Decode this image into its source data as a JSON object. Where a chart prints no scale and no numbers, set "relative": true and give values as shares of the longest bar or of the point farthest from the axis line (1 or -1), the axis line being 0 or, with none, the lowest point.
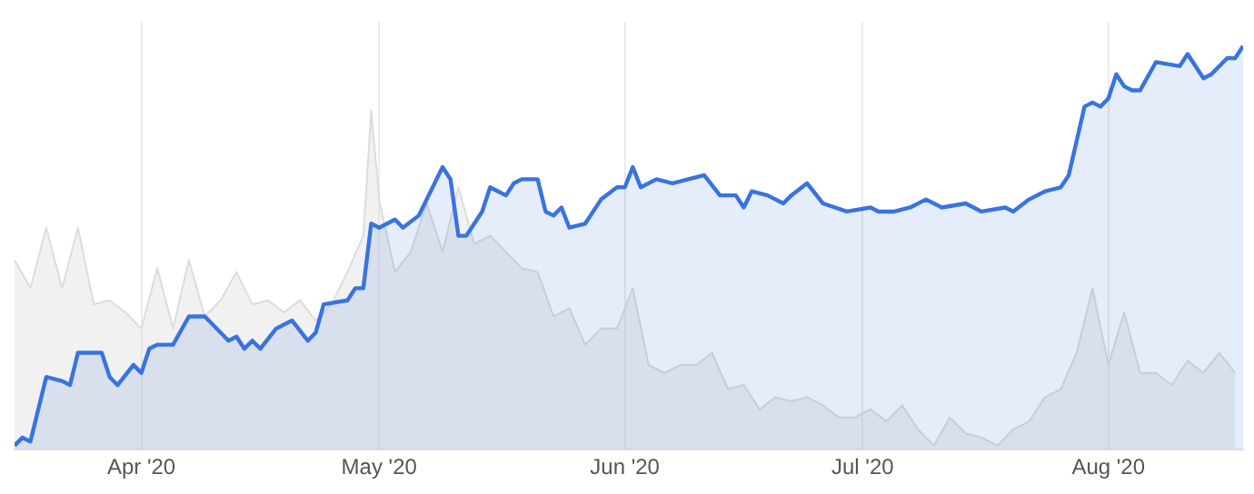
{
  "chart_data": {
    "type": "area",
    "relative": true,
    "grid": "x",
    "legend": false,
    "xlim": [
      "2020-03-16",
      "2020-08-18"
    ],
    "xticks": [
      {
        "value": "2020-04-01",
        "label": "Apr '20"
      },
      {
        "value": "2020-05-01",
        "label": "May '20"
      },
      {
        "value": "2020-06-01",
        "label": "Jun '20"
      },
      {
        "value": "2020-07-01",
        "label": "Jul '20"
      },
      {
        "value": "2020-08-01",
        "label": "Aug '20"
      }
    ],
    "series": [
      {
        "color": "#dcdcdc",
        "x": [
          "2020-03-16",
          "2020-03-18",
          "2020-03-20",
          "2020-03-22",
          "2020-03-24",
          "2020-03-26",
          "2020-03-28",
          "2020-03-30",
          "2020-04-01",
          "2020-04-03",
          "2020-04-05",
          "2020-04-07",
          "2020-04-09",
          "2020-04-11",
          "2020-04-13",
          "2020-04-15",
          "2020-04-17",
          "2020-04-19",
          "2020-04-21",
          "2020-04-23",
          "2020-04-25",
          "2020-04-27",
          "2020-04-29",
          "2020-04-30",
          "2020-05-01",
          "2020-05-03",
          "2020-05-05",
          "2020-05-07",
          "2020-05-09",
          "2020-05-11",
          "2020-05-13",
          "2020-05-15",
          "2020-05-17",
          "2020-05-19",
          "2020-05-21",
          "2020-05-23",
          "2020-05-25",
          "2020-05-27",
          "2020-05-29",
          "2020-05-31",
          "2020-06-02",
          "2020-06-04",
          "2020-06-06",
          "2020-06-08",
          "2020-06-10",
          "2020-06-12",
          "2020-06-14",
          "2020-06-16",
          "2020-06-18",
          "2020-06-20",
          "2020-06-22",
          "2020-06-24",
          "2020-06-26",
          "2020-06-28",
          "2020-06-30",
          "2020-07-02",
          "2020-07-04",
          "2020-07-06",
          "2020-07-08",
          "2020-07-10",
          "2020-07-12",
          "2020-07-14",
          "2020-07-16",
          "2020-07-18",
          "2020-07-20",
          "2020-07-22",
          "2020-07-24",
          "2020-07-26",
          "2020-07-28",
          "2020-07-30",
          "2020-08-01",
          "2020-08-03",
          "2020-08-05",
          "2020-08-07",
          "2020-08-09",
          "2020-08-11",
          "2020-08-13",
          "2020-08-15",
          "2020-08-17"
        ],
        "values": [
          0.47,
          0.4,
          0.55,
          0.4,
          0.55,
          0.36,
          0.37,
          0.34,
          0.3,
          0.45,
          0.3,
          0.47,
          0.33,
          0.37,
          0.44,
          0.36,
          0.37,
          0.34,
          0.37,
          0.32,
          0.36,
          0.44,
          0.53,
          0.84,
          0.62,
          0.44,
          0.49,
          0.61,
          0.49,
          0.65,
          0.51,
          0.53,
          0.49,
          0.45,
          0.44,
          0.33,
          0.35,
          0.26,
          0.3,
          0.3,
          0.4,
          0.21,
          0.19,
          0.21,
          0.21,
          0.24,
          0.15,
          0.16,
          0.1,
          0.13,
          0.12,
          0.13,
          0.11,
          0.08,
          0.08,
          0.1,
          0.07,
          0.11,
          0.05,
          0.01,
          0.08,
          0.04,
          0.03,
          0.01,
          0.05,
          0.07,
          0.13,
          0.15,
          0.24,
          0.4,
          0.21,
          0.34,
          0.19,
          0.19,
          0.16,
          0.22,
          0.19,
          0.24,
          0.19
        ]
      },
      {
        "color": "#3873e0",
        "x": [
          "2020-03-16",
          "2020-03-17",
          "2020-03-18",
          "2020-03-20",
          "2020-03-22",
          "2020-03-23",
          "2020-03-24",
          "2020-03-27",
          "2020-03-28",
          "2020-03-29",
          "2020-03-31",
          "2020-04-01",
          "2020-04-02",
          "2020-04-03",
          "2020-04-05",
          "2020-04-07",
          "2020-04-09",
          "2020-04-11",
          "2020-04-12",
          "2020-04-13",
          "2020-04-14",
          "2020-04-15",
          "2020-04-16",
          "2020-04-18",
          "2020-04-20",
          "2020-04-22",
          "2020-04-23",
          "2020-04-24",
          "2020-04-27",
          "2020-04-28",
          "2020-04-29",
          "2020-04-30",
          "2020-05-01",
          "2020-05-03",
          "2020-05-04",
          "2020-05-06",
          "2020-05-09",
          "2020-05-10",
          "2020-05-11",
          "2020-05-12",
          "2020-05-14",
          "2020-05-15",
          "2020-05-16",
          "2020-05-17",
          "2020-05-18",
          "2020-05-19",
          "2020-05-21",
          "2020-05-22",
          "2020-05-23",
          "2020-05-24",
          "2020-05-25",
          "2020-05-27",
          "2020-05-29",
          "2020-05-31",
          "2020-06-01",
          "2020-06-02",
          "2020-06-03",
          "2020-06-05",
          "2020-06-07",
          "2020-06-09",
          "2020-06-11",
          "2020-06-13",
          "2020-06-15",
          "2020-06-16",
          "2020-06-17",
          "2020-06-19",
          "2020-06-21",
          "2020-06-22",
          "2020-06-24",
          "2020-06-26",
          "2020-06-29",
          "2020-07-02",
          "2020-07-03",
          "2020-07-05",
          "2020-07-07",
          "2020-07-09",
          "2020-07-11",
          "2020-07-14",
          "2020-07-16",
          "2020-07-19",
          "2020-07-20",
          "2020-07-22",
          "2020-07-24",
          "2020-07-26",
          "2020-07-27",
          "2020-07-29",
          "2020-07-30",
          "2020-07-31",
          "2020-08-01",
          "2020-08-02",
          "2020-08-03",
          "2020-08-04",
          "2020-08-05",
          "2020-08-07",
          "2020-08-10",
          "2020-08-11",
          "2020-08-13",
          "2020-08-14",
          "2020-08-16",
          "2020-08-17",
          "2020-08-18"
        ],
        "values": [
          0.01,
          0.03,
          0.02,
          0.18,
          0.17,
          0.16,
          0.24,
          0.24,
          0.18,
          0.16,
          0.21,
          0.19,
          0.25,
          0.26,
          0.26,
          0.33,
          0.33,
          0.29,
          0.27,
          0.28,
          0.25,
          0.27,
          0.25,
          0.3,
          0.32,
          0.27,
          0.29,
          0.36,
          0.37,
          0.4,
          0.4,
          0.56,
          0.55,
          0.57,
          0.55,
          0.58,
          0.7,
          0.67,
          0.53,
          0.53,
          0.59,
          0.65,
          0.64,
          0.63,
          0.66,
          0.67,
          0.67,
          0.59,
          0.58,
          0.6,
          0.55,
          0.56,
          0.62,
          0.65,
          0.65,
          0.7,
          0.65,
          0.67,
          0.66,
          0.67,
          0.68,
          0.63,
          0.63,
          0.6,
          0.64,
          0.63,
          0.61,
          0.63,
          0.66,
          0.61,
          0.59,
          0.6,
          0.59,
          0.59,
          0.6,
          0.62,
          0.6,
          0.61,
          0.59,
          0.6,
          0.59,
          0.62,
          0.64,
          0.65,
          0.68,
          0.85,
          0.86,
          0.85,
          0.87,
          0.93,
          0.9,
          0.89,
          0.89,
          0.96,
          0.95,
          0.98,
          0.92,
          0.93,
          0.97,
          0.97,
          1
        ]
      }
    ]
  }
}
